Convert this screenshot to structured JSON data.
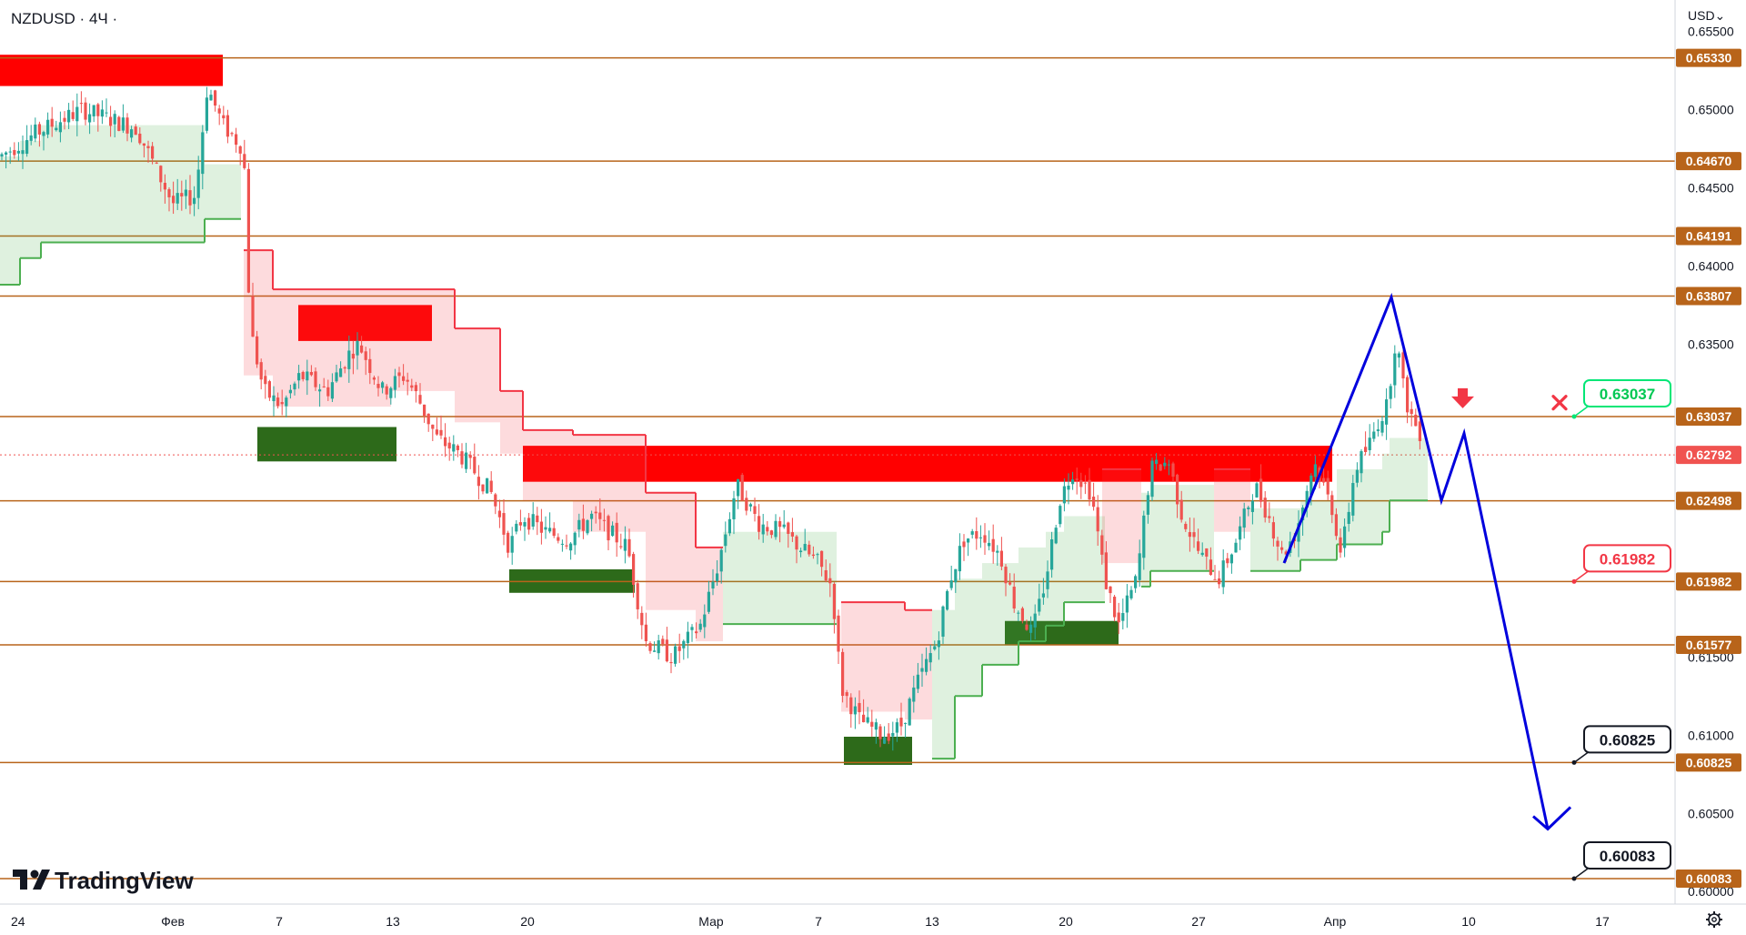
{
  "header": {
    "symbol_label": "NZDUSD · 4Ч ·"
  },
  "currency_menu": {
    "label": "USD⌄"
  },
  "branding": {
    "name": "TradingView"
  },
  "colors": {
    "level_line": "#b8641a",
    "level_tag": "#b8641a",
    "current_tag": "#f05350",
    "supply_zone": "#ff0000",
    "demand_zone": "#2d6a1a",
    "bull_candle": "#26a69a",
    "bear_candle": "#ef5350",
    "projection": "#0000dd",
    "trail_up": "#4caf50",
    "trail_down": "#f23645"
  },
  "chart_data": {
    "type": "candlestick",
    "y_axis": {
      "range": [
        0.5992,
        0.657
      ],
      "tick_labels": [
        "0.65500",
        "0.65000",
        "0.64500",
        "0.64000",
        "0.63500",
        "0.62500",
        "0.61500",
        "0.61000",
        "0.60500",
        "0.60000"
      ]
    },
    "x_axis": {
      "tick_labels": [
        "24",
        "Фев",
        "7",
        "13",
        "20",
        "Мар",
        "7",
        "13",
        "20",
        "27",
        "Апр",
        "10",
        "17"
      ]
    },
    "levels": [
      {
        "price": 0.6533,
        "label": "0.65330"
      },
      {
        "price": 0.6467,
        "label": "0.64670"
      },
      {
        "price": 0.64191,
        "label": "0.64191"
      },
      {
        "price": 0.63807,
        "label": "0.63807"
      },
      {
        "price": 0.63037,
        "label": "0.63037"
      },
      {
        "price": 0.62498,
        "label": "0.62498"
      },
      {
        "price": 0.61982,
        "label": "0.61982"
      },
      {
        "price": 0.61577,
        "label": "0.61577"
      },
      {
        "price": 0.60825,
        "label": "0.60825"
      },
      {
        "price": 0.60083,
        "label": "0.60083"
      }
    ],
    "current_price": {
      "price": 0.62792,
      "label": "0.62792"
    },
    "callouts": [
      {
        "price": 0.63037,
        "label": "0.63037",
        "style": "green"
      },
      {
        "price": 0.61982,
        "label": "0.61982",
        "style": "red"
      },
      {
        "price": 0.60825,
        "label": "0.60825",
        "style": "black"
      },
      {
        "price": 0.60083,
        "label": "0.60083",
        "style": "black"
      }
    ],
    "zones": [
      {
        "kind": "supply",
        "p_top": 0.6535,
        "p_bottom": 0.6515
      },
      {
        "kind": "supply",
        "p_top": 0.6375,
        "p_bottom": 0.6352
      },
      {
        "kind": "supply",
        "p_top": 0.6285,
        "p_bottom": 0.6262
      },
      {
        "kind": "demand",
        "p_top": 0.6297,
        "p_bottom": 0.6275
      },
      {
        "kind": "demand",
        "p_top": 0.6206,
        "p_bottom": 0.6191
      },
      {
        "kind": "demand",
        "p_top": 0.6173,
        "p_bottom": 0.6158
      },
      {
        "kind": "demand",
        "p_top": 0.6099,
        "p_bottom": 0.6081
      }
    ],
    "projection_path": [
      0.621,
      0.638,
      0.625,
      0.6293,
      0.604
    ],
    "grid": false,
    "legend": "none"
  }
}
